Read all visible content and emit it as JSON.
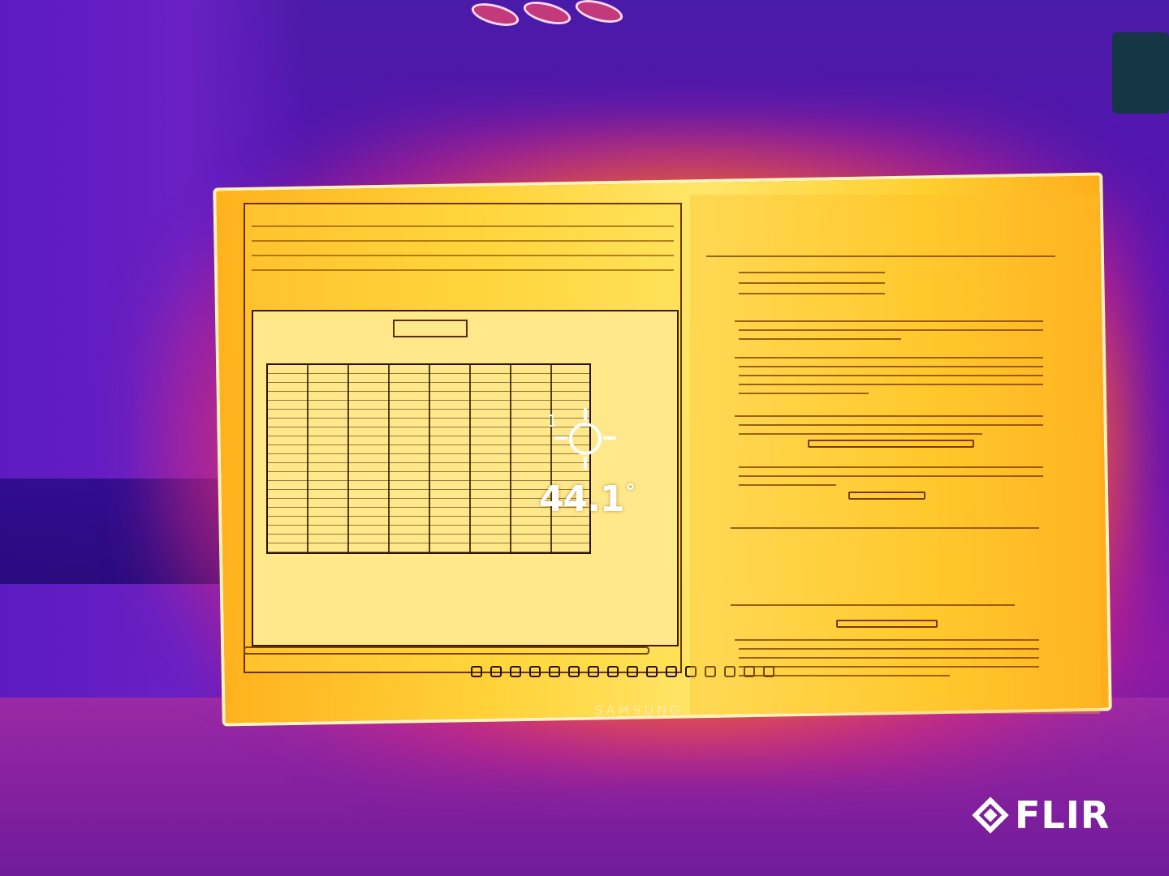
{
  "thermal": {
    "spot_index": "1",
    "temperature_value": "44.1",
    "temperature_unit": "°"
  },
  "monitor": {
    "brand": "SAMSUNG"
  },
  "watermark": {
    "logo_text": "FLIR"
  },
  "colors": {
    "hot": "#ffe66a",
    "warm": "#ff8a10",
    "cool": "#5a14b4",
    "overlay": "#ffffff"
  }
}
